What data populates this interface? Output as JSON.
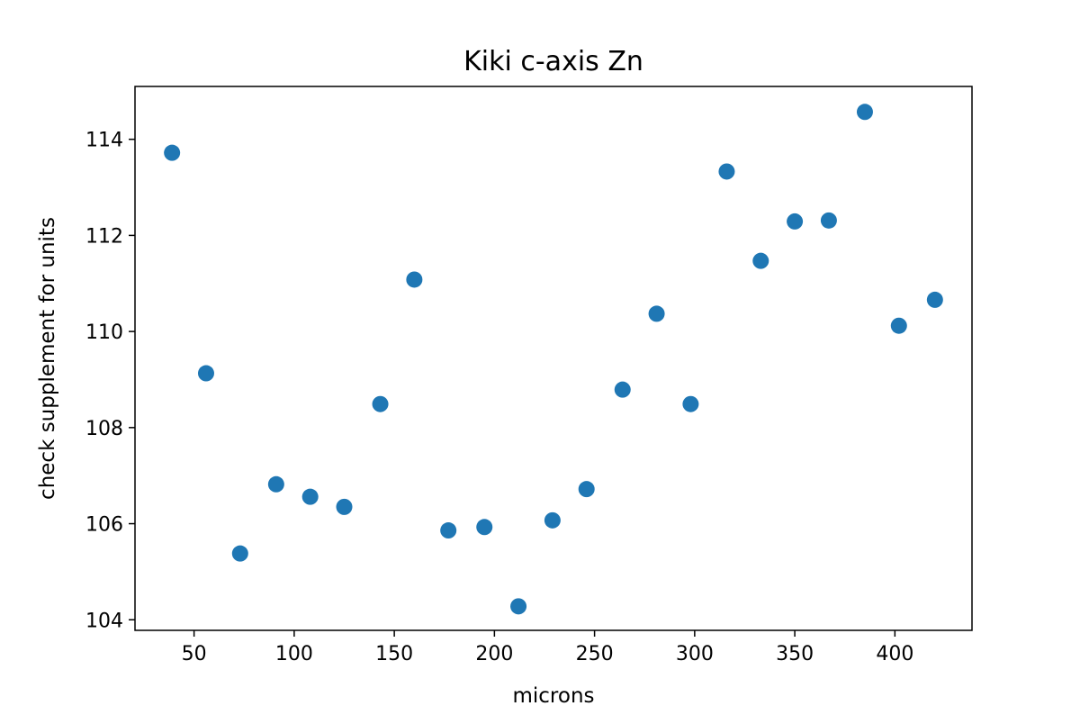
{
  "chart_data": {
    "type": "scatter",
    "title": "Kiki c-axis Zn",
    "xlabel": "microns",
    "ylabel": "check supplement for units",
    "xlim": [
      20.5,
      438.5
    ],
    "ylim": [
      103.78,
      115.1
    ],
    "x_ticks": [
      50,
      100,
      150,
      200,
      250,
      300,
      350,
      400
    ],
    "y_ticks": [
      104,
      106,
      108,
      110,
      112,
      114
    ],
    "grid": false,
    "legend": "none",
    "marker_color": "#1f77b4",
    "points": [
      {
        "x": 39,
        "y": 113.72
      },
      {
        "x": 56,
        "y": 109.13
      },
      {
        "x": 73,
        "y": 105.38
      },
      {
        "x": 91,
        "y": 106.82
      },
      {
        "x": 108,
        "y": 106.56
      },
      {
        "x": 125,
        "y": 106.35
      },
      {
        "x": 143,
        "y": 108.49
      },
      {
        "x": 160,
        "y": 111.08
      },
      {
        "x": 177,
        "y": 105.86
      },
      {
        "x": 195,
        "y": 105.93
      },
      {
        "x": 212,
        "y": 104.28
      },
      {
        "x": 229,
        "y": 106.07
      },
      {
        "x": 246,
        "y": 106.72
      },
      {
        "x": 264,
        "y": 108.79
      },
      {
        "x": 281,
        "y": 110.37
      },
      {
        "x": 298,
        "y": 108.49
      },
      {
        "x": 316,
        "y": 113.33
      },
      {
        "x": 333,
        "y": 111.47
      },
      {
        "x": 350,
        "y": 112.29
      },
      {
        "x": 367,
        "y": 112.31
      },
      {
        "x": 385,
        "y": 114.57
      },
      {
        "x": 402,
        "y": 110.12
      },
      {
        "x": 420,
        "y": 110.66
      }
    ]
  }
}
